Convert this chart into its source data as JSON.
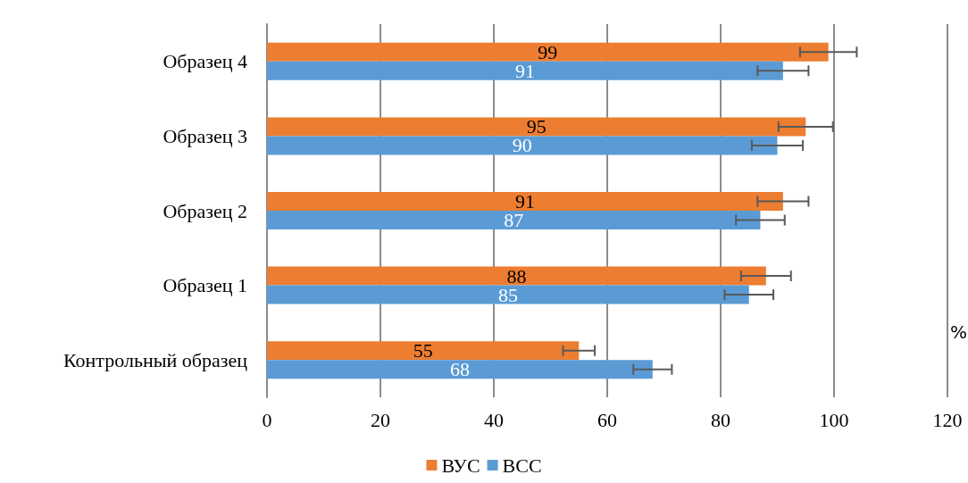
{
  "chart_data": {
    "type": "bar",
    "orientation": "horizontal",
    "categories": [
      "Образец 4",
      "Образец 3",
      "Образец 2",
      "Образец 1",
      "Контрольный образец"
    ],
    "series": [
      {
        "name": "ВУС",
        "color": "#ed7d31",
        "values": [
          99,
          95,
          91,
          88,
          55
        ],
        "errors": [
          5,
          4.8,
          4.5,
          4.4,
          2.8
        ]
      },
      {
        "name": "ВСС",
        "color": "#5b9bd5",
        "values": [
          91,
          90,
          87,
          85,
          68
        ],
        "errors": [
          4.5,
          4.5,
          4.3,
          4.3,
          3.4
        ]
      }
    ],
    "xlim": [
      0,
      120
    ],
    "xticks": [
      0,
      20,
      40,
      60,
      80,
      100,
      120
    ],
    "grid": "x",
    "legend": "bottom",
    "data_labels": true,
    "annotations": [
      "%"
    ]
  }
}
